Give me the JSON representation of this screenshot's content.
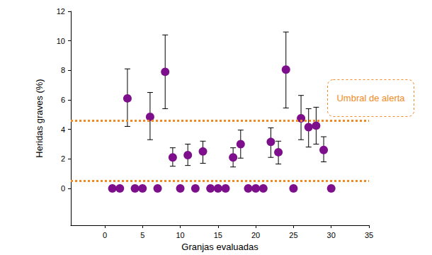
{
  "chart_data": {
    "type": "scatter",
    "x_label": "Granjas evaluadas",
    "y_label": "Heridas graves (%)",
    "x": [
      1,
      2,
      3,
      4,
      5,
      6,
      7,
      8,
      9,
      10,
      11,
      12,
      13,
      14,
      15,
      16,
      17,
      18,
      19,
      20,
      21,
      22,
      23,
      24,
      25,
      26,
      27,
      28,
      29,
      30
    ],
    "values": [
      0,
      0,
      6.1,
      0,
      0,
      4.85,
      0,
      7.9,
      2.1,
      0,
      2.25,
      0,
      2.5,
      0,
      0,
      0,
      2.1,
      3.0,
      0,
      0,
      0,
      3.15,
      2.45,
      8.05,
      0,
      4.75,
      4.15,
      4.25,
      2.6,
      0
    ],
    "error_low": [
      null,
      null,
      4.2,
      null,
      null,
      3.3,
      null,
      5.4,
      1.5,
      null,
      1.55,
      null,
      1.7,
      null,
      null,
      null,
      1.45,
      2.05,
      null,
      null,
      null,
      2.1,
      1.65,
      5.45,
      null,
      3.3,
      2.8,
      3.0,
      1.8,
      null
    ],
    "error_high": [
      null,
      null,
      8.1,
      null,
      null,
      6.5,
      null,
      10.4,
      2.75,
      null,
      3.0,
      null,
      3.2,
      null,
      null,
      null,
      2.75,
      3.95,
      null,
      null,
      null,
      4.1,
      3.2,
      10.6,
      null,
      6.3,
      5.4,
      5.5,
      3.5,
      null
    ],
    "color": "#7d0f8c",
    "threshold_lines": [
      4.6,
      0.5
    ],
    "threshold_color": "#f08a24",
    "annotation": "Umbral de alerta",
    "xlim": [
      -4.5,
      35
    ],
    "xticks": [
      0,
      5,
      10,
      15,
      20,
      25,
      30,
      35
    ],
    "ylim": [
      -2.5,
      12
    ],
    "yticks": [
      0,
      2,
      4,
      6,
      8,
      10,
      12
    ],
    "grid": false
  }
}
